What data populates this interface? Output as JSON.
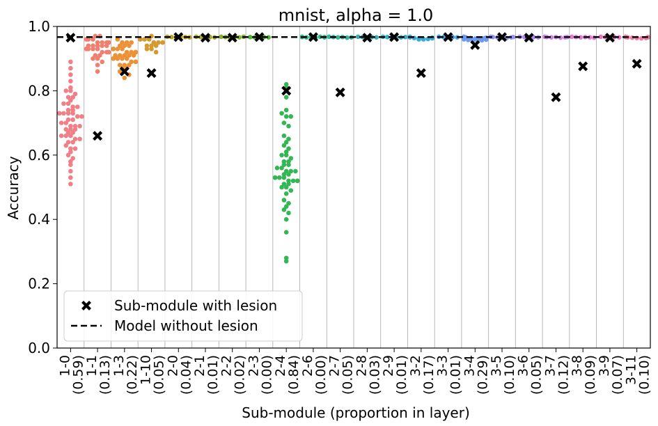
{
  "chart_data": {
    "type": "scatter",
    "title": "mnist, alpha = 1.0",
    "xlabel": "Sub-module (proportion in layer)",
    "ylabel": "Accuracy",
    "ylim": [
      0.0,
      1.0
    ],
    "yticks": [
      "0.0",
      "0.2",
      "0.4",
      "0.6",
      "0.8",
      "1.0"
    ],
    "grid": "vertical separators between categories",
    "legend_position": "lower-left",
    "baseline_accuracy": 0.967,
    "legend": {
      "lesion_label": "Sub-module with lesion",
      "baseline_label": "Model without lesion"
    },
    "categories": [
      {
        "name": "1-0",
        "proportion": "(0.59)",
        "color": "#f07f87",
        "lesion": 0.965,
        "points": [
          0.89,
          0.87,
          0.85,
          0.83,
          0.81,
          0.8,
          0.8,
          0.79,
          0.78,
          0.78,
          0.77,
          0.76,
          0.76,
          0.75,
          0.75,
          0.74,
          0.74,
          0.73,
          0.73,
          0.73,
          0.73,
          0.72,
          0.72,
          0.71,
          0.71,
          0.7,
          0.7,
          0.69,
          0.69,
          0.69,
          0.68,
          0.68,
          0.68,
          0.67,
          0.67,
          0.66,
          0.66,
          0.66,
          0.65,
          0.65,
          0.64,
          0.64,
          0.63,
          0.62,
          0.62,
          0.61,
          0.6,
          0.59,
          0.58,
          0.57,
          0.55,
          0.53,
          0.51
        ]
      },
      {
        "name": "1-1",
        "proportion": "(0.13)",
        "color": "#f07f70",
        "lesion": 0.66,
        "points": [
          0.97,
          0.97,
          0.96,
          0.96,
          0.96,
          0.96,
          0.95,
          0.95,
          0.95,
          0.95,
          0.95,
          0.94,
          0.94,
          0.94,
          0.94,
          0.94,
          0.93,
          0.93,
          0.93,
          0.93,
          0.93,
          0.92,
          0.92,
          0.92,
          0.92,
          0.91,
          0.91,
          0.9,
          0.9,
          0.89,
          0.88,
          0.86
        ]
      },
      {
        "name": "1-3",
        "proportion": "(0.22)",
        "color": "#ec9136",
        "lesion": 0.86,
        "points": [
          0.96,
          0.95,
          0.95,
          0.95,
          0.94,
          0.94,
          0.94,
          0.93,
          0.93,
          0.93,
          0.93,
          0.93,
          0.92,
          0.92,
          0.92,
          0.92,
          0.92,
          0.91,
          0.91,
          0.91,
          0.91,
          0.91,
          0.9,
          0.9,
          0.9,
          0.9,
          0.9,
          0.89,
          0.89,
          0.89,
          0.88,
          0.88,
          0.88,
          0.87,
          0.87,
          0.86,
          0.86,
          0.85,
          0.84
        ]
      },
      {
        "name": "1-10",
        "proportion": "(0.05)",
        "color": "#d49a30",
        "lesion": 0.855,
        "points": [
          0.97,
          0.96,
          0.96,
          0.96,
          0.96,
          0.95,
          0.95,
          0.95,
          0.95,
          0.94,
          0.94,
          0.94,
          0.93,
          0.93,
          0.92
        ]
      },
      {
        "name": "2-0",
        "proportion": "(0.04)",
        "color": "#b8a42c",
        "lesion": 0.967,
        "points": [
          0.968,
          0.967,
          0.966,
          0.968,
          0.967,
          0.966
        ]
      },
      {
        "name": "2-1",
        "proportion": "(0.01)",
        "color": "#a3aa2c",
        "lesion": 0.965,
        "points": [
          0.968,
          0.967,
          0.966,
          0.967,
          0.966
        ]
      },
      {
        "name": "2-2",
        "proportion": "(0.02)",
        "color": "#87b12f",
        "lesion": 0.965,
        "points": [
          0.968,
          0.967,
          0.966,
          0.967,
          0.966,
          0.968
        ]
      },
      {
        "name": "2-3",
        "proportion": "(0.00)",
        "color": "#4fb635",
        "lesion": 0.967,
        "points": [
          0.967,
          0.966,
          0.968,
          0.967,
          0.966
        ]
      },
      {
        "name": "2-4",
        "proportion": "(0.84)",
        "color": "#33b755",
        "lesion": 0.8,
        "points": [
          0.82,
          0.81,
          0.8,
          0.78,
          0.74,
          0.73,
          0.72,
          0.72,
          0.7,
          0.69,
          0.66,
          0.65,
          0.64,
          0.63,
          0.62,
          0.61,
          0.6,
          0.6,
          0.59,
          0.58,
          0.58,
          0.57,
          0.57,
          0.56,
          0.56,
          0.55,
          0.55,
          0.55,
          0.54,
          0.54,
          0.53,
          0.53,
          0.53,
          0.53,
          0.52,
          0.52,
          0.52,
          0.52,
          0.51,
          0.51,
          0.5,
          0.5,
          0.49,
          0.48,
          0.46,
          0.45,
          0.44,
          0.43,
          0.42,
          0.4,
          0.36,
          0.28,
          0.27
        ]
      },
      {
        "name": "2-6",
        "proportion": "(0.00)",
        "color": "#36b587",
        "lesion": 0.967,
        "points": [
          0.968,
          0.967,
          0.966,
          0.967,
          0.965,
          0.968,
          0.966,
          0.967
        ]
      },
      {
        "name": "2-7",
        "proportion": "(0.05)",
        "color": "#37b39f",
        "lesion": 0.795,
        "points": [
          0.968,
          0.967,
          0.966,
          0.967,
          0.965,
          0.966
        ]
      },
      {
        "name": "2-8",
        "proportion": "(0.03)",
        "color": "#38b1b1",
        "lesion": 0.965,
        "points": [
          0.968,
          0.967,
          0.966,
          0.967,
          0.966
        ]
      },
      {
        "name": "2-9",
        "proportion": "(0.01)",
        "color": "#39aec4",
        "lesion": 0.967,
        "points": [
          0.968,
          0.967,
          0.966,
          0.967,
          0.966,
          0.967
        ]
      },
      {
        "name": "3-2",
        "proportion": "(0.17)",
        "color": "#3aa9d6",
        "lesion": 0.855,
        "points": [
          0.968,
          0.966,
          0.964,
          0.962,
          0.961,
          0.96,
          0.96,
          0.961,
          0.963,
          0.965
        ]
      },
      {
        "name": "3-3",
        "proportion": "(0.01)",
        "color": "#44a2e6",
        "lesion": 0.967,
        "points": [
          0.968,
          0.967,
          0.966,
          0.967,
          0.966
        ]
      },
      {
        "name": "3-4",
        "proportion": "(0.29)",
        "color": "#6d9bef",
        "lesion": 0.942,
        "points": [
          0.968,
          0.966,
          0.964,
          0.962,
          0.96,
          0.958,
          0.956,
          0.955,
          0.957,
          0.959,
          0.961,
          0.963,
          0.965
        ]
      },
      {
        "name": "3-5",
        "proportion": "(0.10)",
        "color": "#9495f3",
        "lesion": 0.967,
        "points": [
          0.968,
          0.967,
          0.966,
          0.965,
          0.964,
          0.966,
          0.967
        ]
      },
      {
        "name": "3-6",
        "proportion": "(0.05)",
        "color": "#b18bf2",
        "lesion": 0.965,
        "points": [
          0.968,
          0.967,
          0.966,
          0.967,
          0.966
        ]
      },
      {
        "name": "3-7",
        "proportion": "(0.12)",
        "color": "#cd82e8",
        "lesion": 0.78,
        "points": [
          0.968,
          0.967,
          0.966,
          0.967,
          0.965,
          0.966,
          0.967
        ]
      },
      {
        "name": "3-8",
        "proportion": "(0.09)",
        "color": "#e27ad6",
        "lesion": 0.876,
        "points": [
          0.968,
          0.967,
          0.966,
          0.967,
          0.966,
          0.965
        ]
      },
      {
        "name": "3-9",
        "proportion": "(0.07)",
        "color": "#ee74c0",
        "lesion": 0.965,
        "points": [
          0.968,
          0.967,
          0.966,
          0.967,
          0.966
        ]
      },
      {
        "name": "3-11",
        "proportion": "(0.10)",
        "color": "#f27ca4",
        "lesion": 0.884,
        "points": [
          0.968,
          0.967,
          0.966,
          0.965,
          0.964,
          0.963,
          0.964,
          0.966,
          0.967
        ]
      }
    ]
  }
}
